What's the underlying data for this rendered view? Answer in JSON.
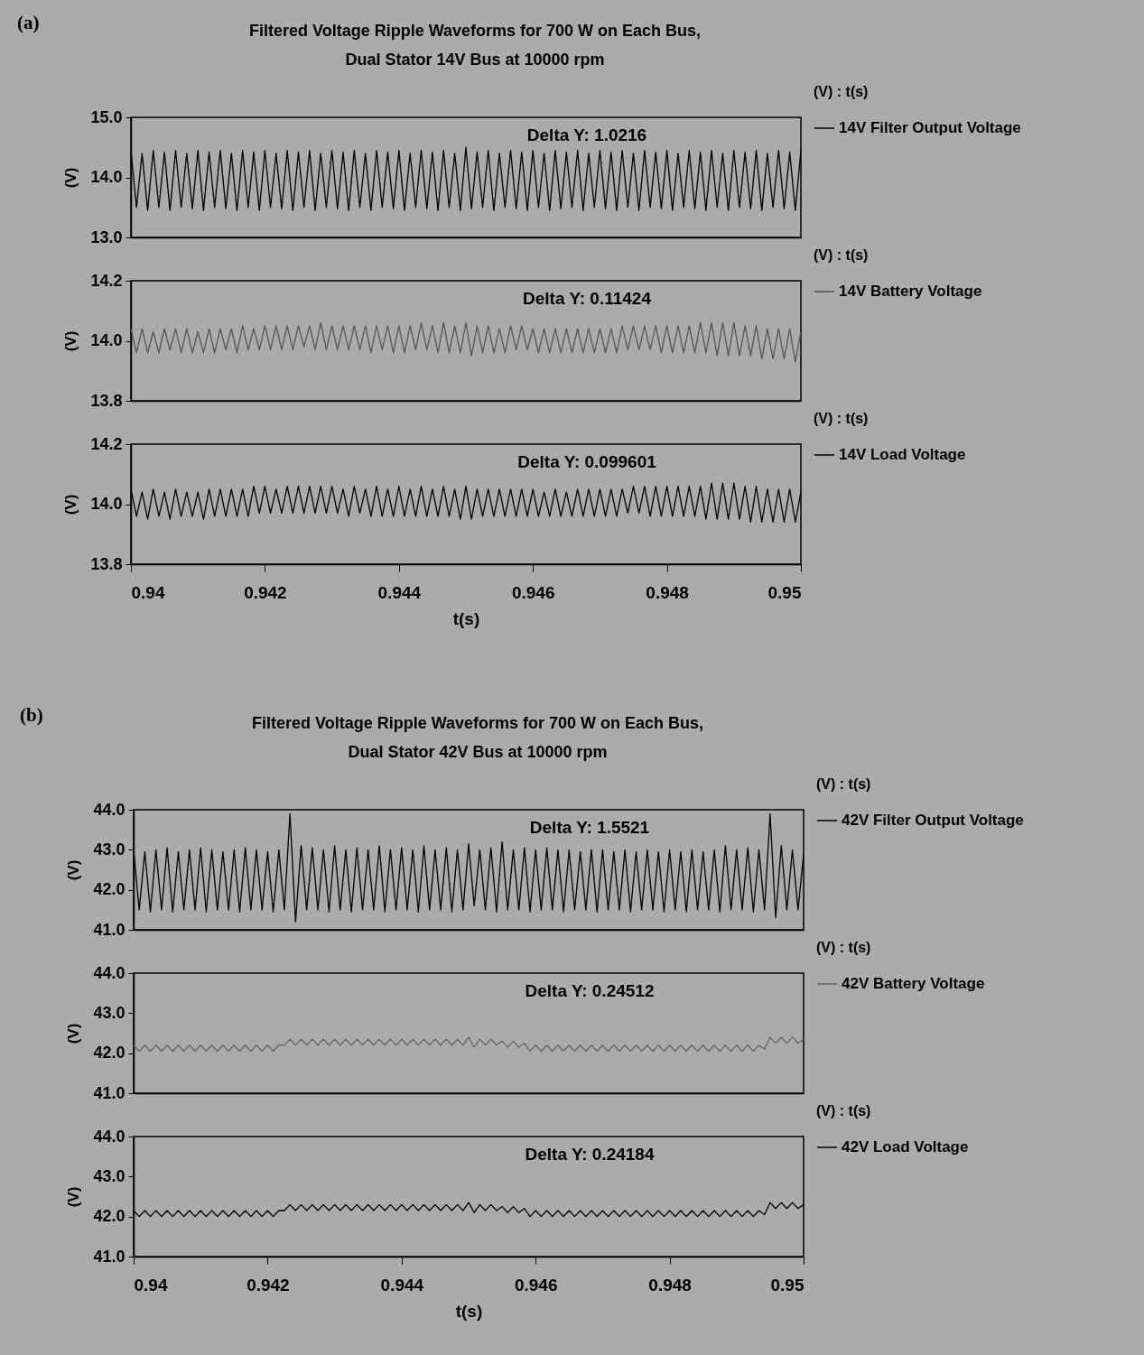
{
  "chart_data": [
    {
      "type": "line",
      "title": "Filtered Voltage Ripple Waveforms for 700 W on Each Bus,",
      "subtitle": "Dual Stator 14V Bus at 10000 rpm",
      "ylabel": "(V)",
      "legend": "right",
      "legend_title": "(V) : t(s)",
      "tick_labels": "y",
      "xlim": [
        0.94,
        0.95
      ],
      "ylim": [
        13,
        15
      ],
      "yticks": [
        {
          "value": 13,
          "label": "13.0"
        },
        {
          "value": 14,
          "label": "14.0"
        },
        {
          "value": 15,
          "label": "15.0"
        }
      ],
      "annotations": [
        "(a)",
        "Delta Y: 1.0216"
      ],
      "x": [
        0.94,
        0.940083,
        0.940167,
        0.94025,
        0.940333,
        0.940417,
        0.9405,
        0.940583,
        0.940667,
        0.94075,
        0.940833,
        0.940917,
        0.941,
        0.941083,
        0.941167,
        0.94125,
        0.941333,
        0.941417,
        0.9415,
        0.941583,
        0.941667,
        0.94175,
        0.941833,
        0.941917,
        0.942,
        0.942083,
        0.942167,
        0.94225,
        0.942333,
        0.942417,
        0.9425,
        0.942583,
        0.942667,
        0.94275,
        0.942833,
        0.942917,
        0.943,
        0.943083,
        0.943167,
        0.94325,
        0.943333,
        0.943417,
        0.9435,
        0.943583,
        0.943667,
        0.94375,
        0.943833,
        0.943917,
        0.944,
        0.944083,
        0.944167,
        0.94425,
        0.944333,
        0.944417,
        0.9445,
        0.944583,
        0.944667,
        0.94475,
        0.944833,
        0.944917,
        0.945,
        0.945083,
        0.945167,
        0.94525,
        0.945333,
        0.945417,
        0.9455,
        0.945583,
        0.945667,
        0.94575,
        0.945833,
        0.945917,
        0.946,
        0.946083,
        0.946167,
        0.94625,
        0.946333,
        0.946417,
        0.9465,
        0.946583,
        0.946667,
        0.94675,
        0.946833,
        0.946917,
        0.947,
        0.947083,
        0.947167,
        0.94725,
        0.947333,
        0.947417,
        0.9475,
        0.947583,
        0.947667,
        0.94775,
        0.947833,
        0.947917,
        0.948,
        0.948083,
        0.948167,
        0.94825,
        0.948333,
        0.948417,
        0.9485,
        0.948583,
        0.948667,
        0.94875,
        0.948833,
        0.948917,
        0.949,
        0.949083,
        0.949167,
        0.94925,
        0.949333,
        0.949417,
        0.9495,
        0.949583,
        0.949667,
        0.94975,
        0.949833,
        0.949917,
        0.95
      ],
      "series": [
        {
          "name": "14V Filter Output Voltage",
          "color": "#000000",
          "values": [
            14.45,
            13.5,
            14.4,
            13.45,
            14.45,
            13.5,
            14.42,
            13.45,
            14.45,
            13.5,
            14.4,
            13.48,
            14.45,
            13.45,
            14.42,
            13.5,
            14.45,
            13.48,
            14.4,
            13.45,
            14.45,
            13.5,
            14.42,
            13.45,
            14.45,
            13.5,
            14.4,
            13.48,
            14.45,
            13.45,
            14.42,
            13.5,
            14.45,
            13.45,
            14.4,
            13.5,
            14.45,
            13.48,
            14.42,
            13.45,
            14.45,
            13.5,
            14.4,
            13.45,
            14.45,
            13.5,
            14.42,
            13.48,
            14.45,
            13.45,
            14.4,
            13.5,
            14.45,
            13.48,
            14.42,
            13.45,
            14.45,
            13.5,
            14.4,
            13.45,
            14.5,
            13.48,
            14.42,
            13.5,
            14.45,
            13.45,
            14.4,
            13.5,
            14.45,
            13.48,
            14.42,
            13.45,
            14.45,
            13.5,
            14.4,
            13.45,
            14.45,
            13.48,
            14.42,
            13.5,
            14.45,
            13.45,
            14.4,
            13.5,
            14.45,
            13.48,
            14.42,
            13.45,
            14.45,
            13.5,
            14.4,
            13.45,
            14.45,
            13.5,
            14.42,
            13.48,
            14.45,
            13.45,
            14.4,
            13.5,
            14.45,
            13.48,
            14.42,
            13.45,
            14.45,
            13.5,
            14.4,
            13.45,
            14.45,
            13.5,
            14.42,
            13.48,
            14.45,
            13.45,
            14.4,
            13.5,
            14.45,
            13.48,
            14.42,
            13.45,
            14.45
          ]
        }
      ]
    },
    {
      "type": "line",
      "ylabel": "(V)",
      "legend": "right",
      "legend_title": "(V) : t(s)",
      "tick_labels": "y",
      "xlim": [
        0.94,
        0.95
      ],
      "ylim": [
        13.8,
        14.2
      ],
      "yticks": [
        {
          "value": 13.8,
          "label": "13.8"
        },
        {
          "value": 14,
          "label": "14.0"
        },
        {
          "value": 14.2,
          "label": "14.2"
        }
      ],
      "annotations": [
        "Delta Y: 0.11424"
      ],
      "x": [
        0.94,
        0.940083,
        0.940167,
        0.94025,
        0.940333,
        0.940417,
        0.9405,
        0.940583,
        0.940667,
        0.94075,
        0.940833,
        0.940917,
        0.941,
        0.941083,
        0.941167,
        0.94125,
        0.941333,
        0.941417,
        0.9415,
        0.941583,
        0.941667,
        0.94175,
        0.941833,
        0.941917,
        0.942,
        0.942083,
        0.942167,
        0.94225,
        0.942333,
        0.942417,
        0.9425,
        0.942583,
        0.942667,
        0.94275,
        0.942833,
        0.942917,
        0.943,
        0.943083,
        0.943167,
        0.94325,
        0.943333,
        0.943417,
        0.9435,
        0.943583,
        0.943667,
        0.94375,
        0.943833,
        0.943917,
        0.944,
        0.944083,
        0.944167,
        0.94425,
        0.944333,
        0.944417,
        0.9445,
        0.944583,
        0.944667,
        0.94475,
        0.944833,
        0.944917,
        0.945,
        0.945083,
        0.945167,
        0.94525,
        0.945333,
        0.945417,
        0.9455,
        0.945583,
        0.945667,
        0.94575,
        0.945833,
        0.945917,
        0.946,
        0.946083,
        0.946167,
        0.94625,
        0.946333,
        0.946417,
        0.9465,
        0.946583,
        0.946667,
        0.94675,
        0.946833,
        0.946917,
        0.947,
        0.947083,
        0.947167,
        0.94725,
        0.947333,
        0.947417,
        0.9475,
        0.947583,
        0.947667,
        0.94775,
        0.947833,
        0.947917,
        0.948,
        0.948083,
        0.948167,
        0.94825,
        0.948333,
        0.948417,
        0.9485,
        0.948583,
        0.948667,
        0.94875,
        0.948833,
        0.948917,
        0.949,
        0.949083,
        0.949167,
        0.94925,
        0.949333,
        0.949417,
        0.9495,
        0.949583,
        0.949667,
        0.94975,
        0.949833,
        0.949917,
        0.95
      ],
      "series": [
        {
          "name": "14V Battery Voltage",
          "color": "#555555",
          "values": [
            14.04,
            13.96,
            14.04,
            13.96,
            14.03,
            13.96,
            14.04,
            13.97,
            14.04,
            13.96,
            14.04,
            13.96,
            14.03,
            13.96,
            14.04,
            13.96,
            14.04,
            13.97,
            14.04,
            13.96,
            14.05,
            13.97,
            14.04,
            13.97,
            14.05,
            13.97,
            14.05,
            13.97,
            14.05,
            13.97,
            14.05,
            13.98,
            14.05,
            13.97,
            14.06,
            13.97,
            14.05,
            13.97,
            14.05,
            13.97,
            14.05,
            13.97,
            14.05,
            13.96,
            14.05,
            13.97,
            14.05,
            13.96,
            14.05,
            13.96,
            14.05,
            13.97,
            14.06,
            13.97,
            14.05,
            13.96,
            14.06,
            13.96,
            14.05,
            13.96,
            14.06,
            13.95,
            14.05,
            13.96,
            14.05,
            13.96,
            14.04,
            13.96,
            14.05,
            13.97,
            14.05,
            13.97,
            14.04,
            13.96,
            14.04,
            13.96,
            14.04,
            13.96,
            14.04,
            13.96,
            14.04,
            13.96,
            14.04,
            13.96,
            14.04,
            13.96,
            14.04,
            13.96,
            14.05,
            13.97,
            14.05,
            13.97,
            14.05,
            13.97,
            14.05,
            13.96,
            14.05,
            13.96,
            14.05,
            13.96,
            14.05,
            13.96,
            14.06,
            13.96,
            14.06,
            13.95,
            14.06,
            13.95,
            14.06,
            13.95,
            14.05,
            13.95,
            14.05,
            13.94,
            14.04,
            13.94,
            14.04,
            13.94,
            14.04,
            13.93,
            14.03
          ]
        }
      ]
    },
    {
      "type": "line",
      "ylabel": "(V)",
      "legend": "right",
      "legend_title": "(V) : t(s)",
      "xlim": [
        0.94,
        0.95
      ],
      "ylim": [
        13.8,
        14.2
      ],
      "yticks": [
        {
          "value": 13.8,
          "label": "13.8"
        },
        {
          "value": 14,
          "label": "14.0"
        },
        {
          "value": 14.2,
          "label": "14.2"
        }
      ],
      "xticks": [
        0.94,
        0.942,
        0.944,
        0.946,
        0.948,
        0.95
      ],
      "xlabel": "t(s)",
      "annotations": [
        "Delta Y: 0.099601"
      ],
      "x": [
        0.94,
        0.940083,
        0.940167,
        0.94025,
        0.940333,
        0.940417,
        0.9405,
        0.940583,
        0.940667,
        0.94075,
        0.940833,
        0.940917,
        0.941,
        0.941083,
        0.941167,
        0.94125,
        0.941333,
        0.941417,
        0.9415,
        0.941583,
        0.941667,
        0.94175,
        0.941833,
        0.941917,
        0.942,
        0.942083,
        0.942167,
        0.94225,
        0.942333,
        0.942417,
        0.9425,
        0.942583,
        0.942667,
        0.94275,
        0.942833,
        0.942917,
        0.943,
        0.943083,
        0.943167,
        0.94325,
        0.943333,
        0.943417,
        0.9435,
        0.943583,
        0.943667,
        0.94375,
        0.943833,
        0.943917,
        0.944,
        0.944083,
        0.944167,
        0.94425,
        0.944333,
        0.944417,
        0.9445,
        0.944583,
        0.944667,
        0.94475,
        0.944833,
        0.944917,
        0.945,
        0.945083,
        0.945167,
        0.94525,
        0.945333,
        0.945417,
        0.9455,
        0.945583,
        0.945667,
        0.94575,
        0.945833,
        0.945917,
        0.946,
        0.946083,
        0.946167,
        0.94625,
        0.946333,
        0.946417,
        0.9465,
        0.946583,
        0.946667,
        0.94675,
        0.946833,
        0.946917,
        0.947,
        0.947083,
        0.947167,
        0.94725,
        0.947333,
        0.947417,
        0.9475,
        0.947583,
        0.947667,
        0.94775,
        0.947833,
        0.947917,
        0.948,
        0.948083,
        0.948167,
        0.94825,
        0.948333,
        0.948417,
        0.9485,
        0.948583,
        0.948667,
        0.94875,
        0.948833,
        0.948917,
        0.949,
        0.949083,
        0.949167,
        0.94925,
        0.949333,
        0.949417,
        0.9495,
        0.949583,
        0.949667,
        0.94975,
        0.949833,
        0.949917,
        0.95
      ],
      "series": [
        {
          "name": "14V Load Voltage",
          "color": "#000000",
          "values": [
            14.05,
            13.96,
            14.04,
            13.95,
            14.05,
            13.96,
            14.04,
            13.95,
            14.05,
            13.96,
            14.04,
            13.96,
            14.04,
            13.95,
            14.05,
            13.96,
            14.05,
            13.96,
            14.05,
            13.96,
            14.05,
            13.96,
            14.06,
            13.97,
            14.06,
            13.97,
            14.05,
            13.97,
            14.06,
            13.97,
            14.06,
            13.97,
            14.06,
            13.97,
            14.06,
            13.97,
            14.06,
            13.97,
            14.05,
            13.96,
            14.06,
            13.97,
            14.05,
            13.96,
            14.06,
            13.96,
            14.05,
            13.96,
            14.06,
            13.96,
            14.05,
            13.96,
            14.06,
            13.96,
            14.05,
            13.96,
            14.06,
            13.96,
            14.05,
            13.95,
            14.06,
            13.95,
            14.05,
            13.96,
            14.05,
            13.96,
            14.05,
            13.96,
            14.05,
            13.96,
            14.05,
            13.96,
            14.05,
            13.96,
            14.04,
            13.96,
            14.05,
            13.96,
            14.04,
            13.96,
            14.05,
            13.96,
            14.05,
            13.96,
            14.05,
            13.96,
            14.05,
            13.96,
            14.05,
            13.97,
            14.06,
            13.97,
            14.06,
            13.96,
            14.06,
            13.96,
            14.06,
            13.96,
            14.06,
            13.96,
            14.06,
            13.96,
            14.06,
            13.95,
            14.07,
            13.95,
            14.07,
            13.95,
            14.07,
            13.95,
            14.06,
            13.94,
            14.06,
            13.94,
            14.05,
            13.94,
            14.05,
            13.94,
            14.05,
            13.94,
            14.04
          ]
        }
      ]
    },
    {
      "type": "line",
      "title": "Filtered Voltage Ripple Waveforms for 700 W on Each Bus,",
      "subtitle": "Dual Stator 42V Bus at 10000 rpm",
      "ylabel": "(V)",
      "legend": "right",
      "legend_title": "(V) : t(s)",
      "tick_labels": "y",
      "xlim": [
        0.94,
        0.95
      ],
      "ylim": [
        41,
        44
      ],
      "yticks": [
        {
          "value": 41,
          "label": "41.0"
        },
        {
          "value": 42,
          "label": "42.0"
        },
        {
          "value": 43,
          "label": "43.0"
        },
        {
          "value": 44,
          "label": "44.0"
        }
      ],
      "annotations": [
        "(b)",
        "Delta Y: 1.5521"
      ],
      "x": [
        0.94,
        0.940083,
        0.940167,
        0.94025,
        0.940333,
        0.940417,
        0.9405,
        0.940583,
        0.940667,
        0.94075,
        0.940833,
        0.940917,
        0.941,
        0.941083,
        0.941167,
        0.94125,
        0.941333,
        0.941417,
        0.9415,
        0.941583,
        0.941667,
        0.94175,
        0.941833,
        0.941917,
        0.942,
        0.942083,
        0.942167,
        0.94225,
        0.942333,
        0.942417,
        0.9425,
        0.942583,
        0.942667,
        0.94275,
        0.942833,
        0.942917,
        0.943,
        0.943083,
        0.943167,
        0.94325,
        0.943333,
        0.943417,
        0.9435,
        0.943583,
        0.943667,
        0.94375,
        0.943833,
        0.943917,
        0.944,
        0.944083,
        0.944167,
        0.94425,
        0.944333,
        0.944417,
        0.9445,
        0.944583,
        0.944667,
        0.94475,
        0.944833,
        0.944917,
        0.945,
        0.945083,
        0.945167,
        0.94525,
        0.945333,
        0.945417,
        0.9455,
        0.945583,
        0.945667,
        0.94575,
        0.945833,
        0.945917,
        0.946,
        0.946083,
        0.946167,
        0.94625,
        0.946333,
        0.946417,
        0.9465,
        0.946583,
        0.946667,
        0.94675,
        0.946833,
        0.946917,
        0.947,
        0.947083,
        0.947167,
        0.94725,
        0.947333,
        0.947417,
        0.9475,
        0.947583,
        0.947667,
        0.94775,
        0.947833,
        0.947917,
        0.948,
        0.948083,
        0.948167,
        0.94825,
        0.948333,
        0.948417,
        0.9485,
        0.948583,
        0.948667,
        0.94875,
        0.948833,
        0.948917,
        0.949,
        0.949083,
        0.949167,
        0.94925,
        0.949333,
        0.949417,
        0.9495,
        0.949583,
        0.949667,
        0.94975,
        0.949833,
        0.949917,
        0.95
      ],
      "series": [
        {
          "name": "42V Filter Output Voltage",
          "color": "#000000",
          "values": [
            43.0,
            41.5,
            42.95,
            41.45,
            43.0,
            41.5,
            43.05,
            41.45,
            42.95,
            41.5,
            43.0,
            41.5,
            43.05,
            41.45,
            43.0,
            41.5,
            42.95,
            41.5,
            43.0,
            41.45,
            43.05,
            41.5,
            43.0,
            41.5,
            42.95,
            41.45,
            43.0,
            41.5,
            43.9,
            41.2,
            43.1,
            41.5,
            43.05,
            41.5,
            43.0,
            41.45,
            43.1,
            41.5,
            43.0,
            41.45,
            43.05,
            41.5,
            43.0,
            41.5,
            43.1,
            41.45,
            43.0,
            41.5,
            43.05,
            41.5,
            43.0,
            41.45,
            43.1,
            41.5,
            43.0,
            41.5,
            43.05,
            41.45,
            43.0,
            41.5,
            43.15,
            41.6,
            43.0,
            41.5,
            43.05,
            41.45,
            43.2,
            41.5,
            43.0,
            41.5,
            43.05,
            41.45,
            43.0,
            41.5,
            43.05,
            41.5,
            43.0,
            41.45,
            43.0,
            41.5,
            42.95,
            41.5,
            43.0,
            41.45,
            43.0,
            41.5,
            42.95,
            41.5,
            43.0,
            41.45,
            42.95,
            41.5,
            43.0,
            41.5,
            42.95,
            41.45,
            43.0,
            41.5,
            42.95,
            41.45,
            43.0,
            41.5,
            42.95,
            41.5,
            43.0,
            41.45,
            43.1,
            41.5,
            43.0,
            41.5,
            43.05,
            41.45,
            43.0,
            41.5,
            43.9,
            41.3,
            43.1,
            41.5,
            43.0,
            41.5,
            42.9
          ]
        }
      ]
    },
    {
      "type": "line",
      "ylabel": "(V)",
      "legend": "right",
      "legend_title": "(V) : t(s)",
      "tick_labels": "y",
      "xlim": [
        0.94,
        0.95
      ],
      "ylim": [
        41,
        44
      ],
      "yticks": [
        {
          "value": 41,
          "label": "41.0"
        },
        {
          "value": 42,
          "label": "42.0"
        },
        {
          "value": 43,
          "label": "43.0"
        },
        {
          "value": 44,
          "label": "44.0"
        }
      ],
      "annotations": [
        "Delta Y: 0.24512"
      ],
      "x": [
        0.94,
        0.940083,
        0.940167,
        0.94025,
        0.940333,
        0.940417,
        0.9405,
        0.940583,
        0.940667,
        0.94075,
        0.940833,
        0.940917,
        0.941,
        0.941083,
        0.941167,
        0.94125,
        0.941333,
        0.941417,
        0.9415,
        0.941583,
        0.941667,
        0.94175,
        0.941833,
        0.941917,
        0.942,
        0.942083,
        0.942167,
        0.94225,
        0.942333,
        0.942417,
        0.9425,
        0.942583,
        0.942667,
        0.94275,
        0.942833,
        0.942917,
        0.943,
        0.943083,
        0.943167,
        0.94325,
        0.943333,
        0.943417,
        0.9435,
        0.943583,
        0.943667,
        0.94375,
        0.943833,
        0.943917,
        0.944,
        0.944083,
        0.944167,
        0.94425,
        0.944333,
        0.944417,
        0.9445,
        0.944583,
        0.944667,
        0.94475,
        0.944833,
        0.944917,
        0.945,
        0.945083,
        0.945167,
        0.94525,
        0.945333,
        0.945417,
        0.9455,
        0.945583,
        0.945667,
        0.94575,
        0.945833,
        0.945917,
        0.946,
        0.946083,
        0.946167,
        0.94625,
        0.946333,
        0.946417,
        0.9465,
        0.946583,
        0.946667,
        0.94675,
        0.946833,
        0.946917,
        0.947,
        0.947083,
        0.947167,
        0.94725,
        0.947333,
        0.947417,
        0.9475,
        0.947583,
        0.947667,
        0.94775,
        0.947833,
        0.947917,
        0.948,
        0.948083,
        0.948167,
        0.94825,
        0.948333,
        0.948417,
        0.9485,
        0.948583,
        0.948667,
        0.94875,
        0.948833,
        0.948917,
        0.949,
        0.949083,
        0.949167,
        0.94925,
        0.949333,
        0.949417,
        0.9495,
        0.949583,
        0.949667,
        0.94975,
        0.949833,
        0.949917,
        0.95
      ],
      "series": [
        {
          "name": "42V Battery Voltage",
          "color": "#666666",
          "values": [
            42.2,
            42.05,
            42.2,
            42.05,
            42.2,
            42.05,
            42.2,
            42.05,
            42.2,
            42.05,
            42.2,
            42.05,
            42.2,
            42.05,
            42.2,
            42.05,
            42.2,
            42.05,
            42.2,
            42.05,
            42.2,
            42.05,
            42.2,
            42.05,
            42.2,
            42.05,
            42.2,
            42.2,
            42.35,
            42.2,
            42.35,
            42.2,
            42.35,
            42.2,
            42.35,
            42.2,
            42.35,
            42.2,
            42.35,
            42.2,
            42.35,
            42.2,
            42.35,
            42.2,
            42.35,
            42.2,
            42.35,
            42.2,
            42.35,
            42.2,
            42.35,
            42.2,
            42.35,
            42.2,
            42.35,
            42.2,
            42.35,
            42.2,
            42.35,
            42.2,
            42.4,
            42.15,
            42.35,
            42.2,
            42.35,
            42.2,
            42.3,
            42.15,
            42.3,
            42.15,
            42.25,
            42.05,
            42.2,
            42.05,
            42.2,
            42.05,
            42.2,
            42.05,
            42.2,
            42.05,
            42.2,
            42.05,
            42.2,
            42.05,
            42.2,
            42.05,
            42.2,
            42.05,
            42.2,
            42.05,
            42.2,
            42.05,
            42.2,
            42.05,
            42.2,
            42.05,
            42.2,
            42.05,
            42.2,
            42.05,
            42.2,
            42.05,
            42.2,
            42.05,
            42.2,
            42.05,
            42.2,
            42.05,
            42.2,
            42.05,
            42.2,
            42.05,
            42.2,
            42.1,
            42.4,
            42.25,
            42.4,
            42.25,
            42.4,
            42.25,
            42.35
          ]
        }
      ]
    },
    {
      "type": "line",
      "ylabel": "(V)",
      "legend": "right",
      "legend_title": "(V) : t(s)",
      "xlim": [
        0.94,
        0.95
      ],
      "ylim": [
        41,
        44
      ],
      "yticks": [
        {
          "value": 41,
          "label": "41.0"
        },
        {
          "value": 42,
          "label": "42.0"
        },
        {
          "value": 43,
          "label": "43.0"
        },
        {
          "value": 44,
          "label": "44.0"
        }
      ],
      "xticks": [
        0.94,
        0.942,
        0.944,
        0.946,
        0.948,
        0.95
      ],
      "xlabel": "t(s)",
      "annotations": [
        "Delta Y: 0.24184"
      ],
      "x": [
        0.94,
        0.940083,
        0.940167,
        0.94025,
        0.940333,
        0.940417,
        0.9405,
        0.940583,
        0.940667,
        0.94075,
        0.940833,
        0.940917,
        0.941,
        0.941083,
        0.941167,
        0.94125,
        0.941333,
        0.941417,
        0.9415,
        0.941583,
        0.941667,
        0.94175,
        0.941833,
        0.941917,
        0.942,
        0.942083,
        0.942167,
        0.94225,
        0.942333,
        0.942417,
        0.9425,
        0.942583,
        0.942667,
        0.94275,
        0.942833,
        0.942917,
        0.943,
        0.943083,
        0.943167,
        0.94325,
        0.943333,
        0.943417,
        0.9435,
        0.943583,
        0.943667,
        0.94375,
        0.943833,
        0.943917,
        0.944,
        0.944083,
        0.944167,
        0.94425,
        0.944333,
        0.944417,
        0.9445,
        0.944583,
        0.944667,
        0.94475,
        0.944833,
        0.944917,
        0.945,
        0.945083,
        0.945167,
        0.94525,
        0.945333,
        0.945417,
        0.9455,
        0.945583,
        0.945667,
        0.94575,
        0.945833,
        0.945917,
        0.946,
        0.946083,
        0.946167,
        0.94625,
        0.946333,
        0.946417,
        0.9465,
        0.946583,
        0.946667,
        0.94675,
        0.946833,
        0.946917,
        0.947,
        0.947083,
        0.947167,
        0.94725,
        0.947333,
        0.947417,
        0.9475,
        0.947583,
        0.947667,
        0.94775,
        0.947833,
        0.947917,
        0.948,
        0.948083,
        0.948167,
        0.94825,
        0.948333,
        0.948417,
        0.9485,
        0.948583,
        0.948667,
        0.94875,
        0.948833,
        0.948917,
        0.949,
        0.949083,
        0.949167,
        0.94925,
        0.949333,
        0.949417,
        0.9495,
        0.949583,
        0.949667,
        0.94975,
        0.949833,
        0.949917,
        0.95
      ],
      "series": [
        {
          "name": "42V Load Voltage",
          "color": "#000000",
          "values": [
            42.15,
            42.0,
            42.15,
            42.0,
            42.15,
            42.0,
            42.15,
            42.0,
            42.15,
            42.0,
            42.15,
            42.0,
            42.15,
            42.0,
            42.15,
            42.0,
            42.15,
            42.0,
            42.15,
            42.0,
            42.15,
            42.0,
            42.15,
            42.0,
            42.15,
            42.0,
            42.15,
            42.15,
            42.3,
            42.15,
            42.3,
            42.15,
            42.3,
            42.15,
            42.3,
            42.15,
            42.3,
            42.15,
            42.3,
            42.15,
            42.3,
            42.15,
            42.3,
            42.15,
            42.3,
            42.15,
            42.3,
            42.15,
            42.3,
            42.15,
            42.3,
            42.15,
            42.3,
            42.15,
            42.3,
            42.15,
            42.3,
            42.15,
            42.3,
            42.15,
            42.35,
            42.1,
            42.3,
            42.15,
            42.3,
            42.15,
            42.25,
            42.1,
            42.25,
            42.1,
            42.2,
            42.0,
            42.15,
            42.0,
            42.15,
            42.0,
            42.15,
            42.0,
            42.15,
            42.0,
            42.15,
            42.0,
            42.15,
            42.0,
            42.15,
            42.0,
            42.15,
            42.0,
            42.15,
            42.0,
            42.15,
            42.0,
            42.15,
            42.0,
            42.15,
            42.0,
            42.15,
            42.0,
            42.15,
            42.0,
            42.15,
            42.0,
            42.15,
            42.0,
            42.15,
            42.0,
            42.15,
            42.0,
            42.15,
            42.0,
            42.15,
            42.0,
            42.15,
            42.05,
            42.35,
            42.2,
            42.35,
            42.2,
            42.35,
            42.2,
            42.3
          ]
        }
      ]
    }
  ]
}
